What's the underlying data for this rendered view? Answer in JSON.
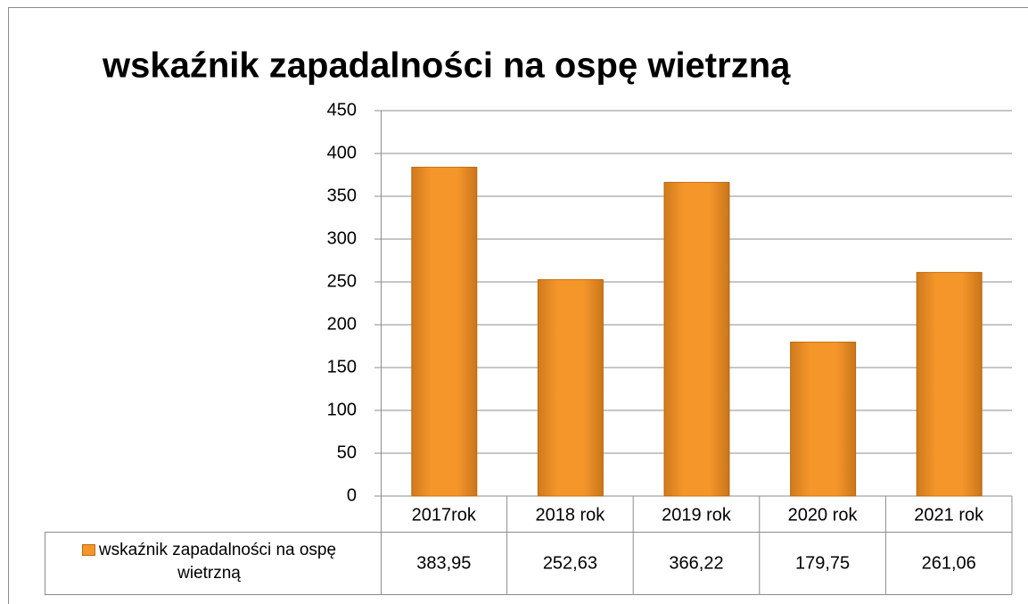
{
  "chart_data": {
    "type": "bar",
    "title": "wskaźnik zapadalności na ospę wietrzną",
    "categories": [
      "2017rok",
      "2018 rok",
      "2019 rok",
      "2020 rok",
      "2021 rok"
    ],
    "series": [
      {
        "name": "wskaźnik zapadalności na ospę wietrzną",
        "color": "#f5962a",
        "values": [
          383.95,
          252.63,
          366.22,
          179.75,
          261.06
        ],
        "value_labels": [
          "383,95",
          "252,63",
          "366,22",
          "179,75",
          "261,06"
        ]
      }
    ],
    "ylim": [
      0,
      450
    ],
    "yticks": [
      0,
      50,
      100,
      150,
      200,
      250,
      300,
      350,
      400,
      450
    ],
    "grid": true,
    "legend": "bottom"
  }
}
